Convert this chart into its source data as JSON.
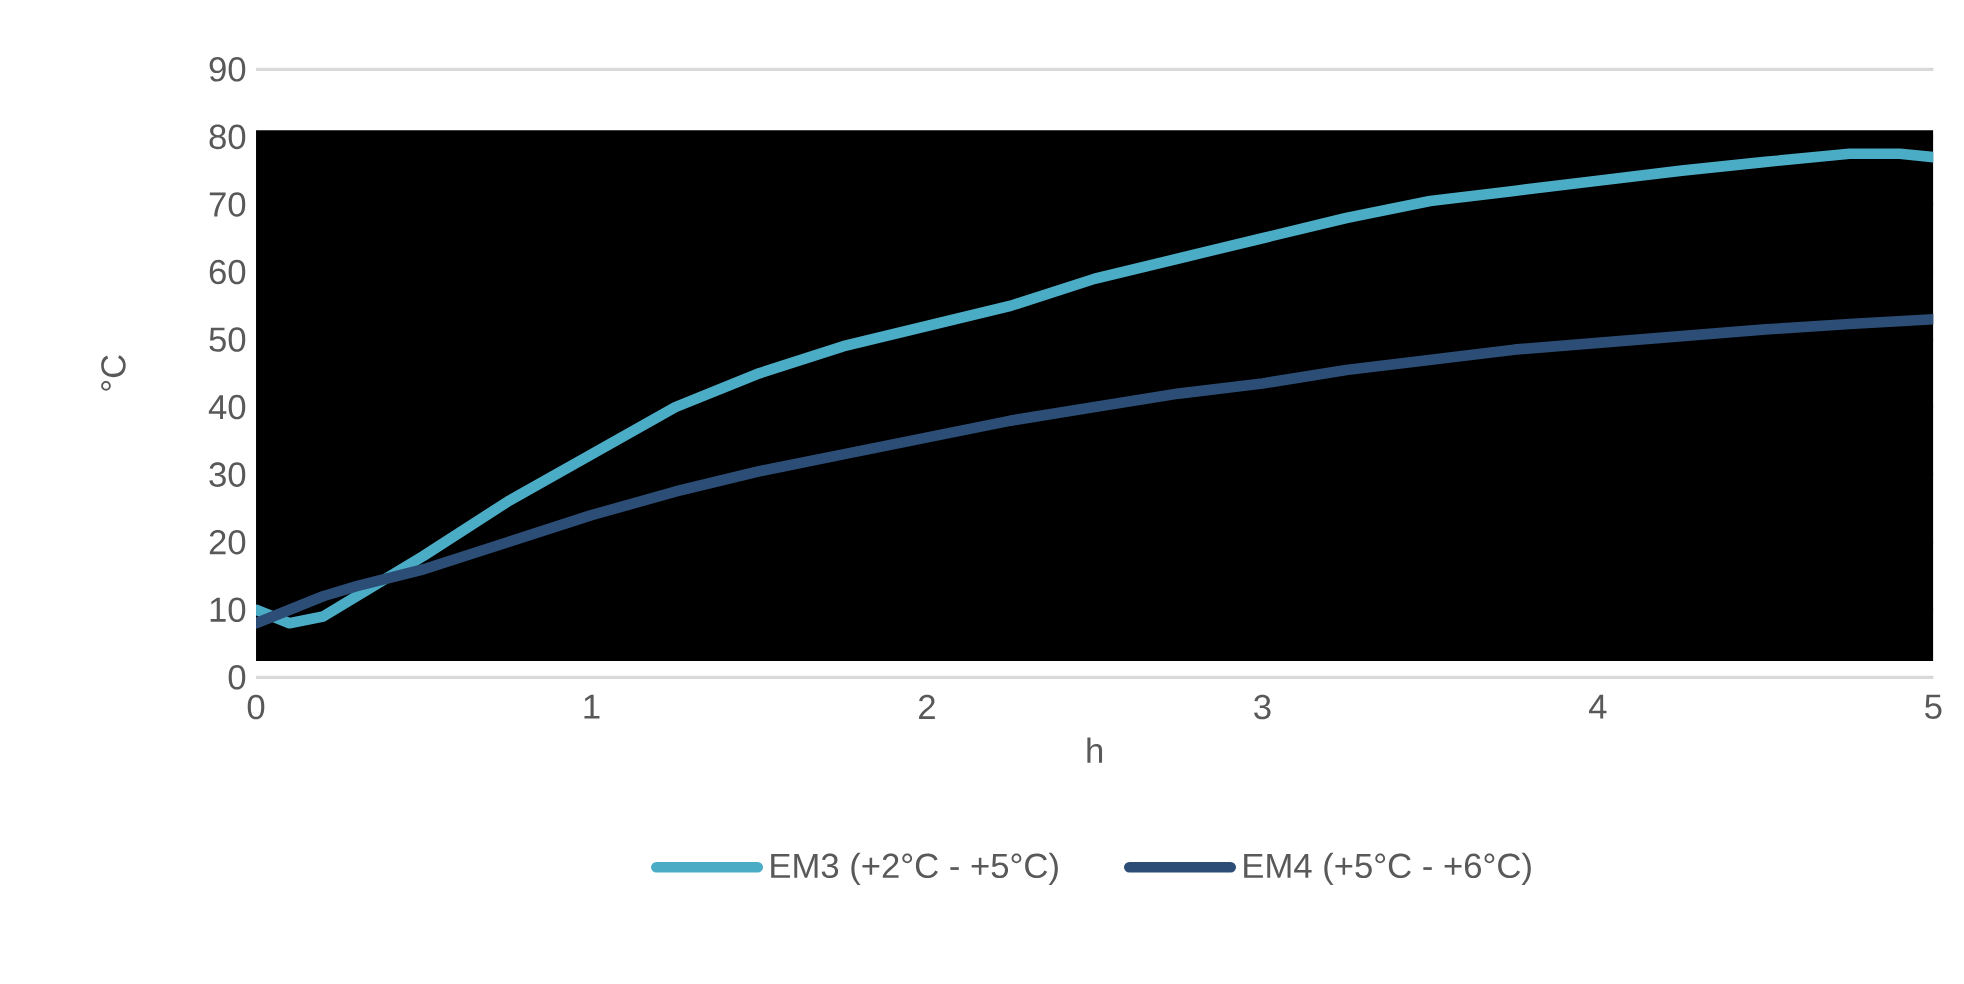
{
  "chart_data": {
    "type": "line",
    "xlabel": "h",
    "ylabel": "°C",
    "xlim": [
      0,
      5
    ],
    "ylim": [
      0,
      90
    ],
    "xticks": [
      0,
      1,
      2,
      3,
      4,
      5
    ],
    "yticks": [
      0,
      10,
      20,
      30,
      40,
      50,
      60,
      70,
      80,
      90
    ],
    "grid": "y",
    "legend": "bottom",
    "line_style": "solid",
    "marker": "none",
    "bands": [
      {
        "axis": "y",
        "from": 2.4,
        "to": 81,
        "color": "#000000"
      }
    ],
    "series": [
      {
        "name": "EM3 (+2°C - +5°C)",
        "color": "#4bacc6",
        "x": [
          0,
          0.05,
          0.1,
          0.2,
          0.3,
          0.5,
          0.75,
          1,
          1.25,
          1.5,
          1.75,
          2,
          2.25,
          2.5,
          2.75,
          3,
          3.25,
          3.5,
          3.75,
          4,
          4.25,
          4.5,
          4.75,
          4.9,
          5
        ],
        "values": [
          10,
          9,
          8,
          9,
          12,
          18,
          26,
          33,
          40,
          45,
          49,
          52,
          55,
          59,
          62,
          65,
          68,
          70.5,
          72,
          73.5,
          75,
          76.3,
          77.5,
          77.5,
          77
        ]
      },
      {
        "name": "EM4 (+5°C - +6°C)",
        "color": "#2c4d75",
        "x": [
          0,
          0.1,
          0.2,
          0.3,
          0.5,
          0.75,
          1,
          1.25,
          1.5,
          1.75,
          2,
          2.25,
          2.5,
          2.75,
          3,
          3.25,
          3.5,
          3.75,
          4,
          4.25,
          4.5,
          4.75,
          5
        ],
        "values": [
          8,
          10,
          12,
          13.5,
          16,
          20,
          24,
          27.5,
          30.5,
          33,
          35.5,
          38,
          40,
          42,
          43.5,
          45.5,
          47,
          48.5,
          49.5,
          50.5,
          51.5,
          52.3,
          53
        ]
      }
    ]
  }
}
